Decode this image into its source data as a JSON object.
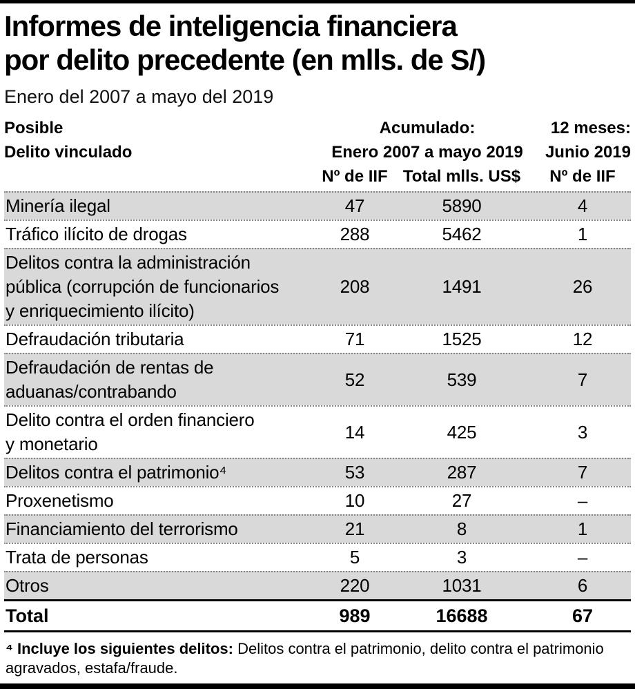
{
  "header": {
    "title": "Informes de inteligencia financiera\npor delito precedente (en mlls. de S/)",
    "subtitle": "Enero del 2007 a mayo del 2019"
  },
  "table": {
    "header": {
      "posible": "Posible",
      "delito": "Delito vinculado",
      "acumulado": "Acumulado:",
      "periodo": "Enero 2007 a mayo 2019",
      "meses12": "12 meses:",
      "junio": "Junio 2019",
      "sub_iif": "Nº de IIF",
      "sub_total": "Total mlls. US$",
      "sub_iif2": "Nº de IIF"
    },
    "rows": [
      {
        "label": "Minería ilegal",
        "iif": "47",
        "total": "5890",
        "iif12": "4"
      },
      {
        "label": "Tráfico ilícito de drogas",
        "iif": "288",
        "total": "5462",
        "iif12": "1"
      },
      {
        "label": "Delitos contra la administración\npública (corrupción de funcionarios\ny enriquecimiento ilícito)",
        "iif": "208",
        "total": "1491",
        "iif12": "26"
      },
      {
        "label": "Defraudación tributaria",
        "iif": "71",
        "total": "1525",
        "iif12": "12"
      },
      {
        "label": "Defraudación de rentas de\naduanas/contrabando",
        "iif": "52",
        "total": "539",
        "iif12": "7"
      },
      {
        "label": "Delito contra el orden financiero\ny monetario",
        "iif": "14",
        "total": "425",
        "iif12": "3"
      },
      {
        "label": "Delitos contra el patrimonio⁴",
        "iif": "53",
        "total": "287",
        "iif12": "7"
      },
      {
        "label": "Proxenetismo",
        "iif": "10",
        "total": "27",
        "iif12": "–"
      },
      {
        "label": "Financiamiento del terrorismo",
        "iif": "21",
        "total": "8",
        "iif12": "1"
      },
      {
        "label": "Trata de personas",
        "iif": "5",
        "total": "3",
        "iif12": "–"
      },
      {
        "label": "Otros",
        "iif": "220",
        "total": "1031",
        "iif12": "6"
      }
    ],
    "total": {
      "label": "Total",
      "iif": "989",
      "total": "16688",
      "iif12": "67"
    }
  },
  "footnote": {
    "lead": "⁴ Incluye los siguientes delitos:",
    "rest": " Delitos contra el patrimonio, delito contra el patrimonio agravados, estafa/fraude."
  },
  "colors": {
    "row_shade": "#d9d9d9",
    "rule": "#000000"
  },
  "chart_data": {
    "type": "table",
    "title": "Informes de inteligencia financiera por delito precedente (en mlls. de S/)",
    "subtitle": "Enero del 2007 a mayo del 2019",
    "columns": [
      "Posible delito vinculado",
      "Acumulado Enero 2007 a mayo 2019: Nº de IIF",
      "Acumulado Enero 2007 a mayo 2019: Total mlls. US$",
      "12 meses Junio 2019: Nº de IIF"
    ],
    "rows": [
      [
        "Minería ilegal",
        47,
        5890,
        4
      ],
      [
        "Tráfico ilícito de drogas",
        288,
        5462,
        1
      ],
      [
        "Delitos contra la administración pública (corrupción de funcionarios y enriquecimiento ilícito)",
        208,
        1491,
        26
      ],
      [
        "Defraudación tributaria",
        71,
        1525,
        12
      ],
      [
        "Defraudación de rentas de aduanas/contrabando",
        52,
        539,
        7
      ],
      [
        "Delito contra el orden financiero y monetario",
        14,
        425,
        3
      ],
      [
        "Delitos contra el patrimonio",
        53,
        287,
        7
      ],
      [
        "Proxenetismo",
        10,
        27,
        null
      ],
      [
        "Financiamiento del terrorismo",
        21,
        8,
        1
      ],
      [
        "Trata de personas",
        5,
        3,
        null
      ],
      [
        "Otros",
        220,
        1031,
        6
      ]
    ],
    "total": [
      "Total",
      989,
      16688,
      67
    ],
    "footnote": "⁴ Incluye los siguientes delitos: Delitos contra el patrimonio, delito contra el patrimonio agravados, estafa/fraude."
  }
}
